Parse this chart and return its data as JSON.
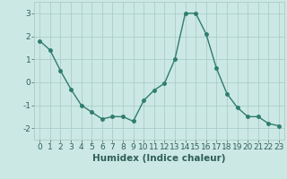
{
  "x": [
    0,
    1,
    2,
    3,
    4,
    5,
    6,
    7,
    8,
    9,
    10,
    11,
    12,
    13,
    14,
    15,
    16,
    17,
    18,
    19,
    20,
    21,
    22,
    23
  ],
  "y": [
    1.8,
    1.4,
    0.5,
    -0.3,
    -1.0,
    -1.3,
    -1.6,
    -1.5,
    -1.5,
    -1.7,
    -0.8,
    -0.35,
    -0.05,
    1.0,
    3.0,
    3.0,
    2.1,
    0.6,
    -0.5,
    -1.1,
    -1.5,
    -1.5,
    -1.8,
    -1.9
  ],
  "line_color": "#2e7d6e",
  "marker": "o",
  "marker_size": 2.5,
  "background_color": "#cce8e4",
  "grid_color": "#aacec9",
  "xlabel": "Humidex (Indice chaleur)",
  "ylim": [
    -2.5,
    3.5
  ],
  "xlim": [
    -0.5,
    23.5
  ],
  "yticks": [
    -2,
    -1,
    0,
    1,
    2,
    3
  ],
  "xticks": [
    0,
    1,
    2,
    3,
    4,
    5,
    6,
    7,
    8,
    9,
    10,
    11,
    12,
    13,
    14,
    15,
    16,
    17,
    18,
    19,
    20,
    21,
    22,
    23
  ],
  "tick_label_fontsize": 6.5,
  "xlabel_fontsize": 7.5,
  "line_width": 1.0
}
